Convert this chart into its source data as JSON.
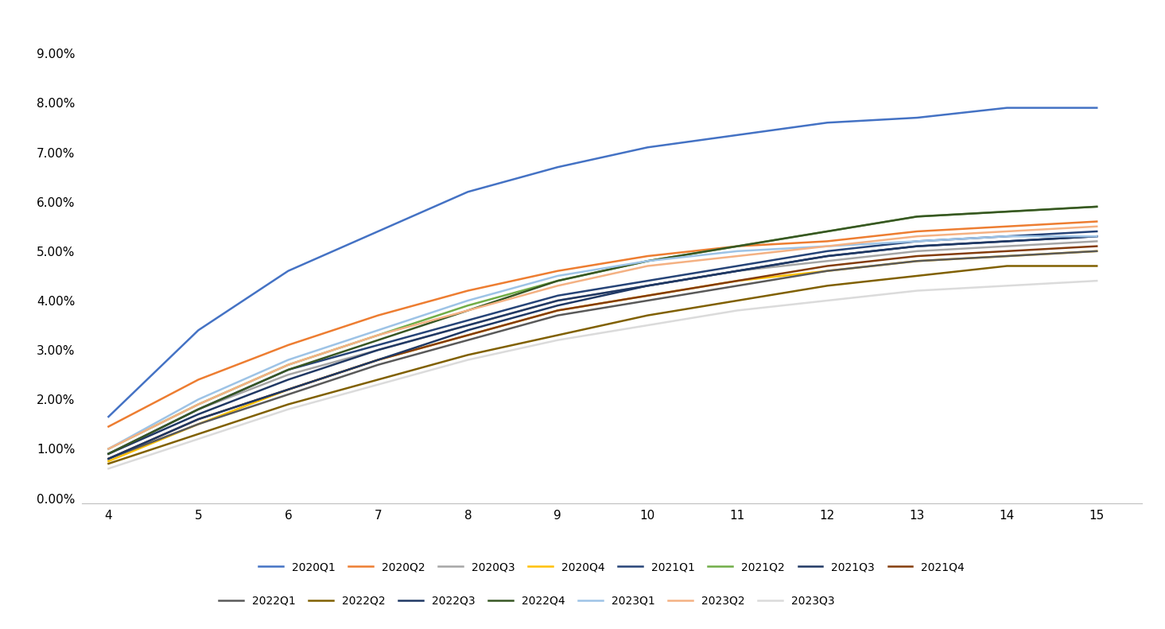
{
  "xlim": [
    3.7,
    15.5
  ],
  "ylim": [
    -0.001,
    0.097
  ],
  "xticks": [
    4,
    5,
    6,
    7,
    8,
    9,
    10,
    11,
    12,
    13,
    14,
    15
  ],
  "yticks": [
    0.0,
    0.01,
    0.02,
    0.03,
    0.04,
    0.05,
    0.06,
    0.07,
    0.08,
    0.09
  ],
  "series": [
    {
      "label": "2020Q1",
      "color": "#4472C4",
      "x": [
        4,
        5,
        6,
        7,
        8,
        9,
        10,
        11,
        12,
        13,
        14,
        15
      ],
      "y": [
        0.0165,
        0.034,
        0.046,
        0.054,
        0.062,
        0.067,
        0.071,
        0.0735,
        0.076,
        0.077,
        0.079,
        0.079
      ]
    },
    {
      "label": "2020Q2",
      "color": "#ED7D31",
      "x": [
        4,
        5,
        6,
        7,
        8,
        9,
        10,
        11,
        12,
        13,
        14,
        15
      ],
      "y": [
        0.0145,
        0.024,
        0.031,
        0.037,
        0.042,
        0.046,
        0.049,
        0.051,
        0.052,
        0.054,
        0.055,
        0.056
      ]
    },
    {
      "label": "2020Q3",
      "color": "#A5A5A5",
      "x": [
        4,
        5,
        6,
        7,
        8,
        9,
        10,
        11,
        12,
        13,
        14,
        15
      ],
      "y": [
        0.009,
        0.018,
        0.025,
        0.03,
        0.035,
        0.04,
        0.043,
        0.046,
        0.048,
        0.05,
        0.051,
        0.052
      ]
    },
    {
      "label": "2020Q4",
      "color": "#FFC000",
      "x": [
        4,
        5,
        6,
        7,
        8,
        9,
        10,
        11,
        12,
        13,
        14,
        15
      ],
      "y": [
        0.0075,
        0.015,
        0.022,
        0.028,
        0.033,
        0.038,
        0.041,
        0.044,
        0.046,
        0.048,
        0.049,
        0.05
      ]
    },
    {
      "label": "2021Q1",
      "color": "#264478",
      "x": [
        4,
        5,
        6,
        7,
        8,
        9,
        10,
        11,
        12,
        13,
        14,
        15
      ],
      "y": [
        0.009,
        0.018,
        0.026,
        0.031,
        0.036,
        0.041,
        0.044,
        0.047,
        0.05,
        0.052,
        0.053,
        0.054
      ]
    },
    {
      "label": "2021Q2",
      "color": "#70AD47",
      "x": [
        4,
        5,
        6,
        7,
        8,
        9,
        10,
        11,
        12,
        13,
        14,
        15
      ],
      "y": [
        0.01,
        0.019,
        0.027,
        0.033,
        0.039,
        0.044,
        0.048,
        0.051,
        0.054,
        0.057,
        0.058,
        0.059
      ]
    },
    {
      "label": "2021Q3",
      "color": "#203864",
      "x": [
        4,
        5,
        6,
        7,
        8,
        9,
        10,
        11,
        12,
        13,
        14,
        15
      ],
      "y": [
        0.009,
        0.017,
        0.024,
        0.03,
        0.035,
        0.04,
        0.043,
        0.046,
        0.049,
        0.051,
        0.052,
        0.053
      ]
    },
    {
      "label": "2021Q4",
      "color": "#843C0C",
      "x": [
        4,
        5,
        6,
        7,
        8,
        9,
        10,
        11,
        12,
        13,
        14,
        15
      ],
      "y": [
        0.008,
        0.016,
        0.022,
        0.028,
        0.033,
        0.038,
        0.041,
        0.044,
        0.047,
        0.049,
        0.05,
        0.051
      ]
    },
    {
      "label": "2022Q1",
      "color": "#595959",
      "x": [
        4,
        5,
        6,
        7,
        8,
        9,
        10,
        11,
        12,
        13,
        14,
        15
      ],
      "y": [
        0.008,
        0.015,
        0.021,
        0.027,
        0.032,
        0.037,
        0.04,
        0.043,
        0.046,
        0.048,
        0.049,
        0.05
      ]
    },
    {
      "label": "2022Q2",
      "color": "#806000",
      "x": [
        4,
        5,
        6,
        7,
        8,
        9,
        10,
        11,
        12,
        13,
        14,
        15
      ],
      "y": [
        0.007,
        0.013,
        0.019,
        0.024,
        0.029,
        0.033,
        0.037,
        0.04,
        0.043,
        0.045,
        0.047,
        0.047
      ]
    },
    {
      "label": "2022Q3",
      "color": "#1F3864",
      "x": [
        4,
        5,
        6,
        7,
        8,
        9,
        10,
        11,
        12,
        13,
        14,
        15
      ],
      "y": [
        0.008,
        0.016,
        0.022,
        0.028,
        0.034,
        0.039,
        0.043,
        0.046,
        0.049,
        0.051,
        0.052,
        0.053
      ]
    },
    {
      "label": "2022Q4",
      "color": "#375623",
      "x": [
        4,
        5,
        6,
        7,
        8,
        9,
        10,
        11,
        12,
        13,
        14,
        15
      ],
      "y": [
        0.009,
        0.018,
        0.026,
        0.032,
        0.038,
        0.044,
        0.048,
        0.051,
        0.054,
        0.057,
        0.058,
        0.059
      ]
    },
    {
      "label": "2023Q1",
      "color": "#9DC3E6",
      "x": [
        4,
        5,
        6,
        7,
        8,
        9,
        10,
        11,
        12,
        13,
        14,
        15
      ],
      "y": [
        0.01,
        0.02,
        0.028,
        0.034,
        0.04,
        0.045,
        0.048,
        0.05,
        0.051,
        0.052,
        0.053,
        0.053
      ]
    },
    {
      "label": "2023Q2",
      "color": "#F4B183",
      "x": [
        4,
        5,
        6,
        7,
        8,
        9,
        10,
        11,
        12,
        13,
        14,
        15
      ],
      "y": [
        0.01,
        0.019,
        0.027,
        0.033,
        0.038,
        0.043,
        0.047,
        0.049,
        0.051,
        0.053,
        0.054,
        0.055
      ]
    },
    {
      "label": "2023Q3",
      "color": "#DBDBDB",
      "x": [
        4,
        5,
        6,
        7,
        8,
        9,
        10,
        11,
        12,
        13,
        14,
        15
      ],
      "y": [
        0.006,
        0.012,
        0.018,
        0.023,
        0.028,
        0.032,
        0.035,
        0.038,
        0.04,
        0.042,
        0.043,
        0.044
      ]
    }
  ],
  "background_color": "#FFFFFF",
  "linewidth": 1.8,
  "fontsize_tick": 11,
  "fontsize_legend": 10
}
